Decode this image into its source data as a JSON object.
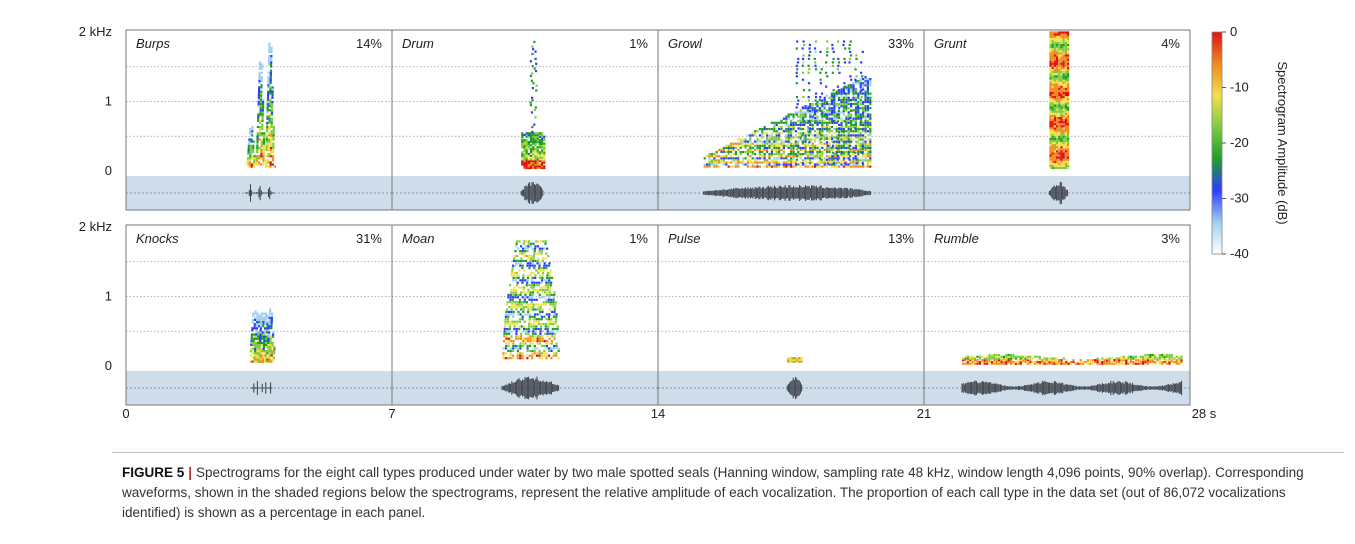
{
  "chart_data": {
    "type": "heatmap",
    "x_ticks": [
      "0",
      "7",
      "14",
      "21",
      "28 s"
    ],
    "y_ticks": [
      "2 kHz",
      "1",
      "0"
    ],
    "xlim": [
      0,
      28
    ],
    "ylim_khz": [
      0,
      2
    ],
    "colorbar": {
      "label": "Spectrogram Amplitude (dB)",
      "ticks": [
        "0",
        "-10",
        "-20",
        "-30",
        "-40"
      ],
      "range": [
        -40,
        0
      ],
      "colors": [
        "#ffffff",
        "#9fd0f0",
        "#2f3cff",
        "#1f9d2a",
        "#7ccc40",
        "#f2e04a",
        "#f08a20",
        "#e01010"
      ]
    },
    "panels": [
      {
        "name": "Burps",
        "percent": "14%",
        "row": 0,
        "col": 0,
        "call_start": 3.15,
        "call_end": 3.9,
        "fmax_khz": 1.85,
        "kind": "bursts",
        "bursts": 3
      },
      {
        "name": "Drum",
        "percent": "1%",
        "row": 0,
        "col": 1,
        "call_start": 10.4,
        "call_end": 11.0,
        "fmax_khz": 1.85,
        "kind": "drum"
      },
      {
        "name": "Growl",
        "percent": "33%",
        "row": 0,
        "col": 2,
        "call_start": 15.2,
        "call_end": 19.6,
        "fmax_khz": 1.9,
        "kind": "harmonic"
      },
      {
        "name": "Grunt",
        "percent": "4%",
        "row": 0,
        "col": 3,
        "call_start": 24.3,
        "call_end": 24.8,
        "fmax_khz": 2.0,
        "kind": "column"
      },
      {
        "name": "Knocks",
        "percent": "31%",
        "row": 1,
        "col": 0,
        "call_start": 3.3,
        "call_end": 3.85,
        "fmax_khz": 0.85,
        "kind": "bursts",
        "bursts": 5
      },
      {
        "name": "Moan",
        "percent": "1%",
        "row": 1,
        "col": 1,
        "call_start": 9.9,
        "call_end": 11.4,
        "fmax_khz": 1.8,
        "kind": "moan"
      },
      {
        "name": "Pulse",
        "percent": "13%",
        "row": 1,
        "col": 2,
        "call_start": 17.4,
        "call_end": 17.8,
        "fmax_khz": 0.12,
        "kind": "pulse"
      },
      {
        "name": "Rumble",
        "percent": "3%",
        "row": 1,
        "col": 3,
        "call_start": 22.0,
        "call_end": 27.8,
        "fmax_khz": 0.15,
        "kind": "rumble"
      }
    ]
  },
  "caption": {
    "label": "FIGURE 5",
    "separator": "|",
    "text": "Spectrograms for the eight call types produced under water by two male spotted seals (Hanning window, sampling rate 48 kHz, window length 4,096 points, 90% overlap). Corresponding waveforms, shown in the shaded regions below the spectrograms, represent the relative amplitude of each vocalization. The proportion of each call type in the data set (out of 86,072 vocalizations identified) is shown as a percentage in each panel."
  }
}
